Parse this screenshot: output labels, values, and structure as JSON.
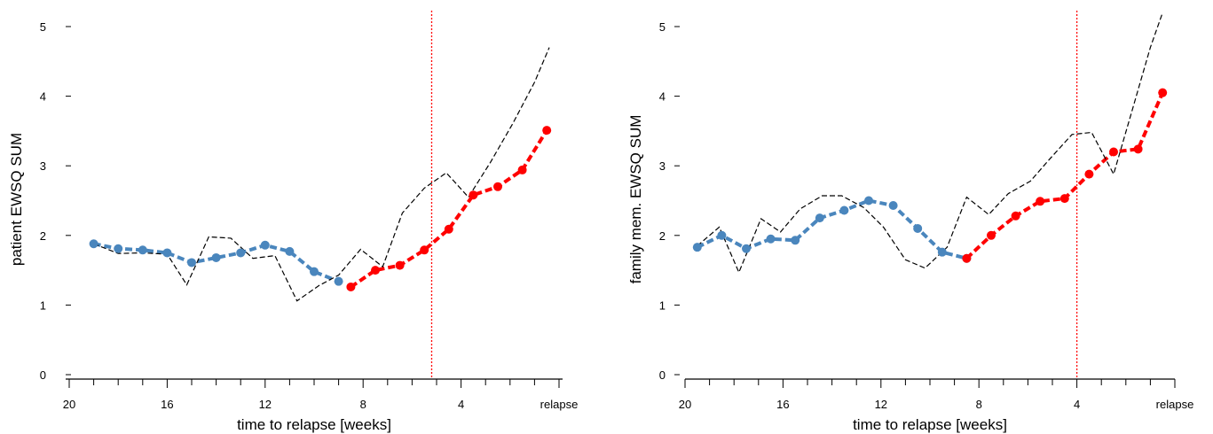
{
  "chart_data": [
    {
      "type": "line",
      "xlabel": "time to relapse [weeks]",
      "ylabel": "patient EWSQ SUM",
      "ylim": [
        0,
        5
      ],
      "yticks": [
        "0",
        "1",
        "2",
        "3",
        "4",
        "5"
      ],
      "xticks": [
        {
          "x": 20,
          "label": "20"
        },
        {
          "x": 16,
          "label": "16"
        },
        {
          "x": 12,
          "label": "12"
        },
        {
          "x": 8,
          "label": "8"
        },
        {
          "x": 4,
          "label": "4"
        },
        {
          "x": 0,
          "label": "relapse"
        }
      ],
      "xlim": [
        20,
        0
      ],
      "vline": {
        "x": 5.2,
        "color": "#ff0000"
      },
      "series": [
        {
          "role": "before",
          "color": "#4a86bd",
          "x": [
            19.0,
            18.0,
            17.0,
            16.0,
            15.0,
            14.0,
            13.0,
            12.0,
            11.0,
            10.0,
            9.0
          ],
          "y": [
            1.88,
            1.81,
            1.79,
            1.75,
            1.61,
            1.68,
            1.75,
            1.86,
            1.77,
            1.48,
            1.34
          ]
        },
        {
          "role": "after",
          "color": "#ff0000",
          "x": [
            8.5,
            7.5,
            6.5,
            5.5,
            4.5,
            3.5,
            2.5,
            1.5,
            0.5
          ],
          "y": [
            1.26,
            1.5,
            1.57,
            1.79,
            2.09,
            2.58,
            2.7,
            2.94,
            3.51
          ]
        },
        {
          "role": "dashed",
          "color": "#000000",
          "x": [
            19.0,
            18.0,
            17.0,
            16.0,
            15.2,
            14.3,
            13.4,
            12.5,
            11.6,
            10.7,
            9.8,
            9.0,
            8.1,
            7.2,
            6.4,
            5.5,
            4.6,
            3.7,
            2.8,
            1.9,
            1.0,
            0.4
          ],
          "y": [
            1.88,
            1.74,
            1.75,
            1.73,
            1.29,
            1.98,
            1.96,
            1.67,
            1.71,
            1.06,
            1.28,
            1.43,
            1.8,
            1.55,
            2.32,
            2.68,
            2.9,
            2.55,
            3.05,
            3.6,
            4.2,
            4.7
          ]
        }
      ]
    },
    {
      "type": "line",
      "xlabel": "time to relapse [weeks]",
      "ylabel": "family mem. EWSQ SUM",
      "ylim": [
        0,
        5
      ],
      "yticks": [
        "0",
        "1",
        "2",
        "3",
        "4",
        "5"
      ],
      "xticks": [
        {
          "x": 20,
          "label": "20"
        },
        {
          "x": 16,
          "label": "16"
        },
        {
          "x": 12,
          "label": "12"
        },
        {
          "x": 8,
          "label": "8"
        },
        {
          "x": 4,
          "label": "4"
        },
        {
          "x": 0,
          "label": "relapse"
        }
      ],
      "xlim": [
        20,
        0
      ],
      "vline": {
        "x": 4.0,
        "color": "#ff0000"
      },
      "series": [
        {
          "role": "before",
          "color": "#4a86bd",
          "x": [
            19.5,
            18.5,
            17.5,
            16.5,
            15.5,
            14.5,
            13.5,
            12.5,
            11.5,
            10.5,
            9.5,
            8.5
          ],
          "y": [
            1.83,
            2.0,
            1.81,
            1.95,
            1.93,
            2.25,
            2.36,
            2.5,
            2.43,
            2.1,
            1.76,
            1.67
          ]
        },
        {
          "role": "after",
          "color": "#ff0000",
          "x": [
            8.5,
            7.5,
            6.5,
            5.5,
            4.5,
            3.5,
            2.5,
            1.5,
            0.5
          ],
          "y": [
            1.67,
            2.0,
            2.28,
            2.49,
            2.53,
            2.88,
            3.2,
            3.24,
            4.05
          ]
        },
        {
          "role": "dashed",
          "color": "#000000",
          "x": [
            19.5,
            18.6,
            17.8,
            16.9,
            16.1,
            15.3,
            14.4,
            13.6,
            12.7,
            11.9,
            11.0,
            10.2,
            9.3,
            8.5,
            7.6,
            6.8,
            5.9,
            5.1,
            4.2,
            3.4,
            2.5,
            1.7,
            1.0,
            0.5
          ],
          "y": [
            1.85,
            2.12,
            1.47,
            2.24,
            2.05,
            2.38,
            2.57,
            2.57,
            2.4,
            2.12,
            1.65,
            1.53,
            1.83,
            2.55,
            2.3,
            2.6,
            2.78,
            3.1,
            3.45,
            3.48,
            2.88,
            3.85,
            4.7,
            5.2
          ]
        }
      ]
    }
  ]
}
